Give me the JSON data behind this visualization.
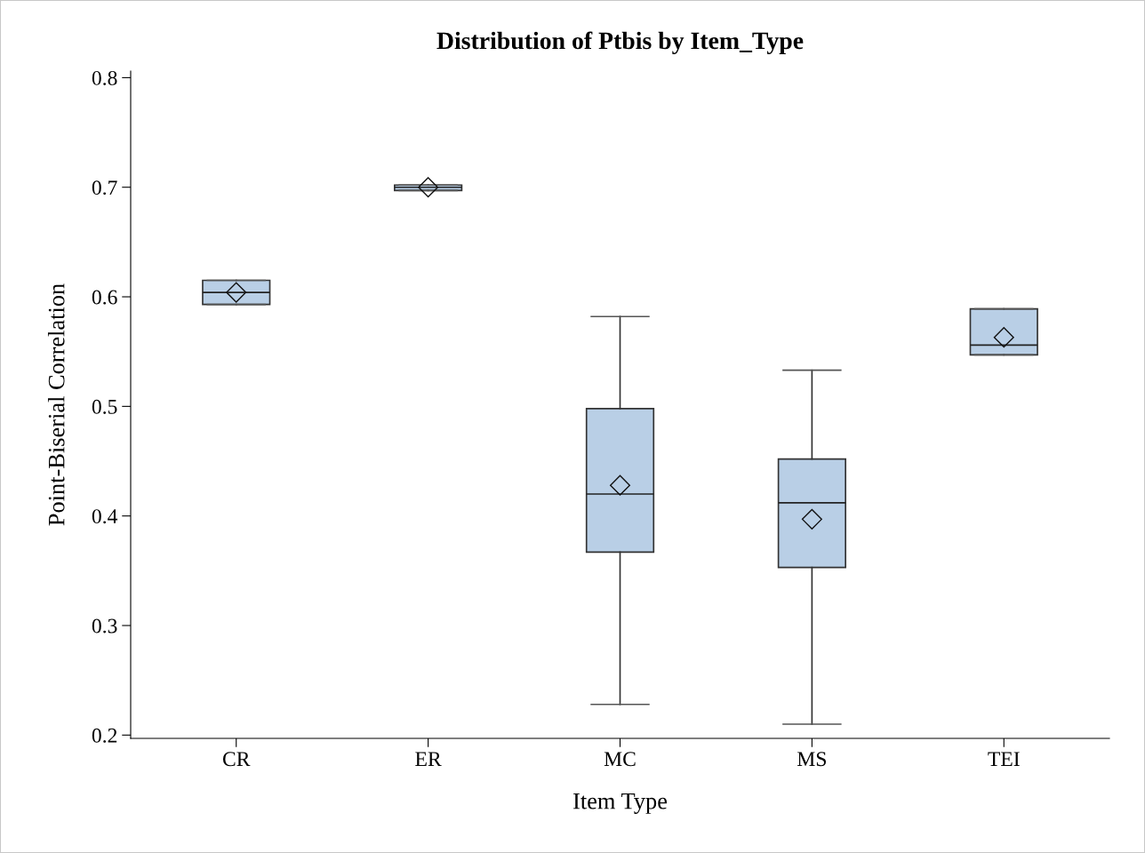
{
  "chart_data": {
    "type": "box",
    "title": "Distribution of Ptbis by Item_Type",
    "xlabel": "Item Type",
    "ylabel": "Point-Biserial Correlation",
    "categories": [
      "CR",
      "ER",
      "MC",
      "MS",
      "TEI"
    ],
    "color": "#b9cfe6",
    "boxes": [
      {
        "low": 0.593,
        "q1": 0.593,
        "median": 0.604,
        "q3": 0.615,
        "high": 0.615,
        "mean": 0.604
      },
      {
        "low": 0.697,
        "q1": 0.697,
        "median": 0.7,
        "q3": 0.702,
        "high": 0.702,
        "mean": 0.7
      },
      {
        "low": 0.228,
        "q1": 0.367,
        "median": 0.42,
        "q3": 0.498,
        "high": 0.582,
        "mean": 0.428
      },
      {
        "low": 0.21,
        "q1": 0.353,
        "median": 0.412,
        "q3": 0.452,
        "high": 0.533,
        "mean": 0.397
      },
      {
        "low": 0.547,
        "q1": 0.547,
        "median": 0.556,
        "q3": 0.589,
        "high": 0.589,
        "mean": 0.563
      }
    ],
    "ylim": [
      0.197,
      0.806
    ],
    "yticks": [
      0.2,
      0.3,
      0.4,
      0.5,
      0.6,
      0.7,
      0.8
    ],
    "marker": "diamond",
    "grid": false,
    "legend": false
  }
}
